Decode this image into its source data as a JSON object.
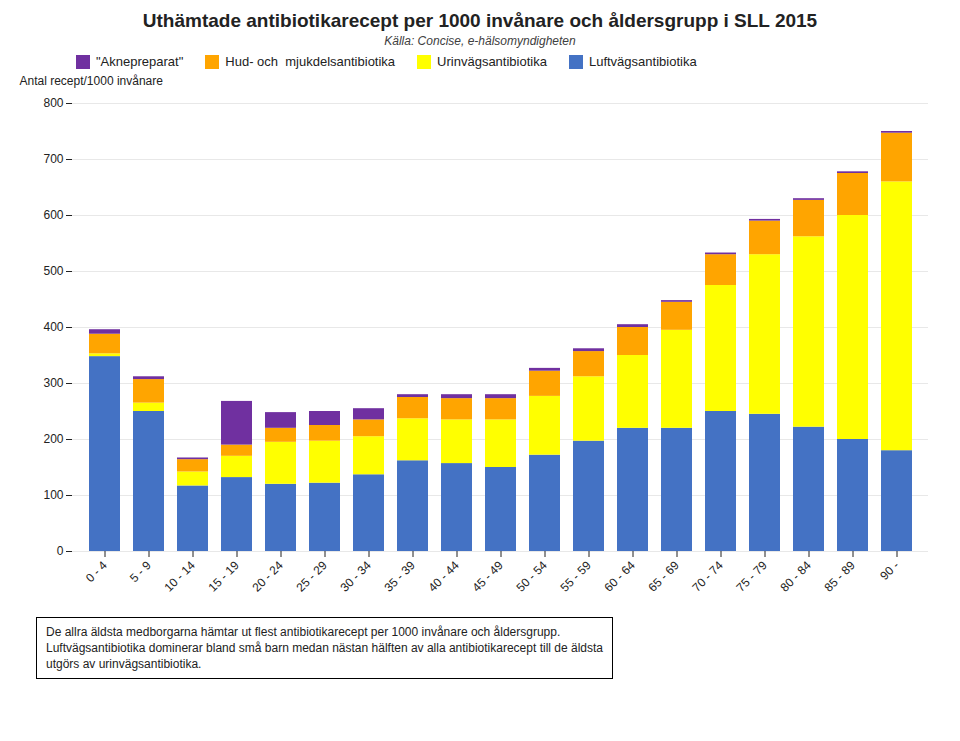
{
  "chart_data": {
    "type": "bar",
    "stacked": true,
    "title": "Uthämtade antibiotikarecept per 1000 invånare och åldersgrupp i SLL 2015",
    "subtitle": "Källa: Concise, e-hälsomyndigheten",
    "ylabel": "Antal recept/1000 invånare",
    "categories": [
      "0 - 4",
      "5 - 9",
      "10 - 14",
      "15 - 19",
      "20 - 24",
      "25 - 29",
      "30 - 34",
      "35 - 39",
      "40 - 44",
      "45 - 49",
      "50 - 54",
      "55 - 59",
      "60 - 64",
      "65 - 69",
      "70 - 74",
      "75 - 79",
      "80 - 84",
      "85 - 89",
      "90 -"
    ],
    "series": [
      {
        "name": "Luftvägsantibiotika",
        "color": "#4472C4",
        "values": [
          348,
          250,
          117,
          132,
          120,
          122,
          137,
          162,
          157,
          150,
          172,
          197,
          220,
          220,
          250,
          245,
          222,
          200,
          180
        ]
      },
      {
        "name": "Urinvägsantibiotika",
        "color": "#FFFF00",
        "values": [
          5,
          15,
          25,
          38,
          75,
          75,
          68,
          75,
          78,
          85,
          105,
          115,
          130,
          175,
          225,
          285,
          340,
          400,
          480
        ]
      },
      {
        "name": "Hud- och  mjukdelsantibiotika",
        "color": "#FFA500",
        "values": [
          35,
          42,
          22,
          20,
          25,
          28,
          30,
          38,
          38,
          38,
          45,
          45,
          50,
          50,
          55,
          60,
          65,
          75,
          87
        ]
      },
      {
        "name": "\"Aknepreparat\"",
        "color": "#7030A0",
        "values": [
          8,
          5,
          3,
          78,
          28,
          25,
          20,
          5,
          7,
          7,
          5,
          5,
          5,
          3,
          3,
          3,
          3,
          3,
          3
        ]
      }
    ],
    "ylim": [
      0,
      800
    ],
    "yticks": [
      0,
      100,
      200,
      300,
      400,
      500,
      600,
      700,
      800
    ],
    "grid": true,
    "legend": "upper left",
    "annotations": [
      "De allra äldsta medborgarna hämtar ut flest antibiotikarecept per 1000 invånare och åldersgrupp.",
      "Luftvägsantibiotika dominerar bland små barn medan nästan hälften av alla antibiotikarecept till de äldsta",
      "utgörs av urinvägsantibiotika."
    ]
  }
}
